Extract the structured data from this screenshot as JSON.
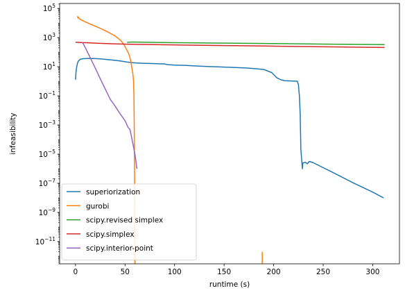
{
  "chart_data": {
    "type": "line",
    "title": "",
    "xlabel": "runtime (s)",
    "ylabel": "infeasibility",
    "xlim": [
      -16,
      327
    ],
    "ylim": [
      3e-13,
      220000.0
    ],
    "y_scale": "log",
    "x_ticks": [
      0,
      50,
      100,
      150,
      200,
      250,
      300
    ],
    "x_tick_labels": [
      "0",
      "50",
      "100",
      "150",
      "200",
      "250",
      "300"
    ],
    "y_tick_exponents": [
      -11,
      -9,
      -7,
      -5,
      -3,
      -1,
      1,
      3,
      5
    ],
    "y_tick_base": "10",
    "grid": false,
    "legend_position": "lower-left",
    "series": [
      {
        "name": "superiorization",
        "color": "#1f77b4",
        "points": [
          [
            0,
            1.3
          ],
          [
            0.5,
            4
          ],
          [
            1,
            8
          ],
          [
            2,
            18
          ],
          [
            3,
            25
          ],
          [
            5,
            33
          ],
          [
            8,
            36
          ],
          [
            12,
            37
          ],
          [
            18,
            37
          ],
          [
            25,
            35
          ],
          [
            35,
            30
          ],
          [
            45,
            25
          ],
          [
            52,
            21
          ],
          [
            57,
            19
          ],
          [
            65,
            17.5
          ],
          [
            80,
            16.5
          ],
          [
            90,
            15.5
          ],
          [
            93,
            14
          ],
          [
            100,
            13
          ],
          [
            110,
            12.5
          ],
          [
            125,
            11
          ],
          [
            140,
            10
          ],
          [
            160,
            9
          ],
          [
            175,
            8
          ],
          [
            185,
            7
          ],
          [
            190,
            6.5
          ],
          [
            198,
            4
          ],
          [
            203,
            1.8
          ],
          [
            207,
            1.3
          ],
          [
            211,
            1.1
          ],
          [
            220,
            1.05
          ],
          [
            224,
            1.0
          ],
          [
            225,
            0.6
          ],
          [
            226,
            0.1
          ],
          [
            226.8,
            0.006
          ],
          [
            227.5,
            2e-05
          ],
          [
            228.5,
            3e-06
          ],
          [
            229,
            1e-06
          ],
          [
            229.5,
            2.5e-06
          ],
          [
            232,
            2.8e-06
          ],
          [
            234,
            2.2e-06
          ],
          [
            236,
            3.2e-06
          ],
          [
            240,
            2.6e-06
          ],
          [
            260,
            5.5e-07
          ],
          [
            280,
            1.1e-07
          ],
          [
            300,
            2.5e-08
          ],
          [
            311,
            1e-08
          ]
        ]
      },
      {
        "name": "gurobi",
        "color": "#ff7f0e",
        "points": [
          [
            2,
            30000
          ],
          [
            2.5,
            22000
          ],
          [
            3,
            25000
          ],
          [
            4,
            19000
          ],
          [
            6,
            16000
          ],
          [
            10,
            12000
          ],
          [
            15,
            8500
          ],
          [
            20,
            6000
          ],
          [
            25,
            4300
          ],
          [
            30,
            3000
          ],
          [
            35,
            2000
          ],
          [
            40,
            1300
          ],
          [
            43,
            900
          ],
          [
            46,
            600
          ],
          [
            49,
            330
          ],
          [
            51,
            180
          ],
          [
            53,
            100
          ],
          [
            54.5,
            55
          ],
          [
            55.5,
            30
          ],
          [
            56.5,
            12
          ],
          [
            57.3,
            6
          ],
          [
            58,
            3
          ],
          [
            58.6,
            1
          ],
          [
            59,
            0.1
          ],
          [
            59.3,
            0.001
          ],
          [
            59.5,
            1e-05
          ],
          [
            59.7,
            1e-08
          ],
          [
            59.9,
            1e-11
          ],
          [
            60,
            3e-13
          ]
        ],
        "spike_points": [
          [
            188.5,
            2e-12
          ],
          [
            188.5,
            3e-13
          ]
        ]
      },
      {
        "name": "scipy.revised simplex",
        "color": "#2ca02c",
        "points": [
          [
            52,
            470
          ],
          [
            58,
            500
          ],
          [
            70,
            480
          ],
          [
            100,
            450
          ],
          [
            150,
            420
          ],
          [
            200,
            390
          ],
          [
            250,
            360
          ],
          [
            312,
            330
          ]
        ]
      },
      {
        "name": "scipy.simplex",
        "color": "#d62728",
        "points": [
          [
            0,
            480
          ],
          [
            10,
            450
          ],
          [
            20,
            420
          ],
          [
            35,
            380
          ],
          [
            55,
            350
          ],
          [
            80,
            330
          ],
          [
            120,
            300
          ],
          [
            160,
            280
          ],
          [
            200,
            260
          ],
          [
            250,
            235
          ],
          [
            312,
            210
          ]
        ]
      },
      {
        "name": "scipy.interior-point",
        "color": "#9467bd",
        "points": [
          [
            7,
            480
          ],
          [
            10,
            200
          ],
          [
            15,
            40
          ],
          [
            20,
            8
          ],
          [
            25,
            1.5
          ],
          [
            30,
            0.3
          ],
          [
            35,
            0.06
          ],
          [
            40,
            0.02
          ],
          [
            45,
            0.006
          ],
          [
            50,
            0.002
          ],
          [
            53,
            0.0007
          ],
          [
            55,
            0.0005
          ],
          [
            58,
            5e-05
          ],
          [
            60,
            1e-05
          ],
          [
            62,
            1e-06
          ]
        ]
      }
    ]
  }
}
